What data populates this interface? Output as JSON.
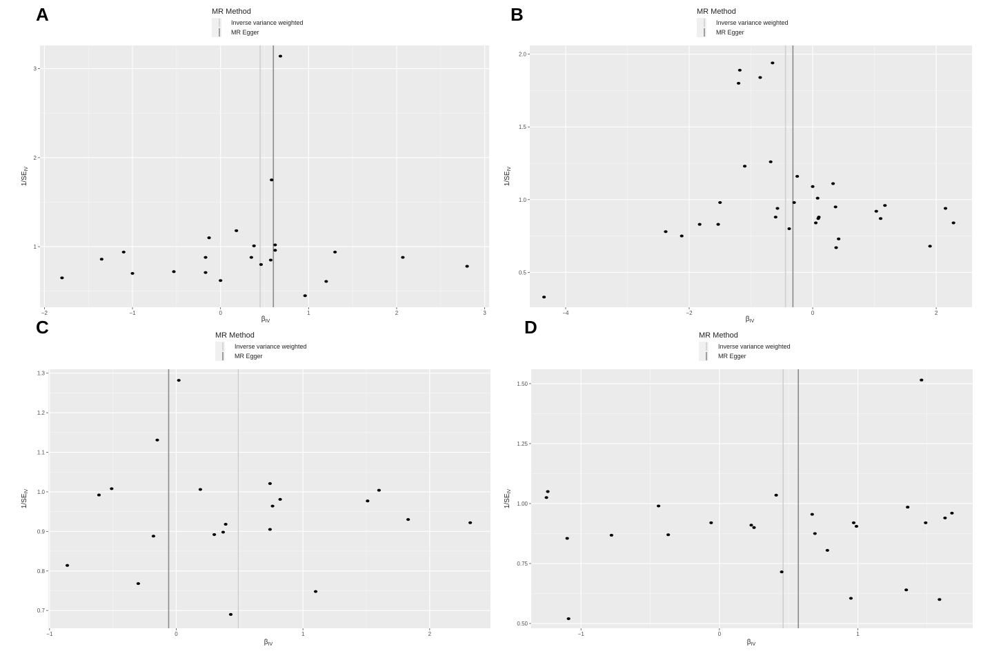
{
  "chart_data": [
    {
      "panel": "A",
      "type": "scatter",
      "legend": {
        "title": "MR Method",
        "entries": [
          "Inverse variance weighted",
          "MR Egger"
        ]
      },
      "xlabel": "β_IV",
      "ylabel": "1/SE_IV",
      "xticks": [
        -2,
        -1,
        0,
        1,
        2,
        3
      ],
      "yticks": [
        1,
        2,
        3
      ],
      "xlim": [
        -2.05,
        3.05
      ],
      "ylim": [
        0.32,
        3.26
      ],
      "lines": {
        "ivw": 0.45,
        "egger": 0.6
      },
      "points": [
        {
          "x": -1.8,
          "y": 0.65
        },
        {
          "x": -1.35,
          "y": 0.86
        },
        {
          "x": -1.1,
          "y": 0.94
        },
        {
          "x": -1.0,
          "y": 0.7
        },
        {
          "x": -0.53,
          "y": 0.72
        },
        {
          "x": -0.17,
          "y": 0.88
        },
        {
          "x": -0.17,
          "y": 0.71
        },
        {
          "x": -0.13,
          "y": 1.1
        },
        {
          "x": 0.0,
          "y": 0.62
        },
        {
          "x": 0.18,
          "y": 1.18
        },
        {
          "x": 0.35,
          "y": 0.88
        },
        {
          "x": 0.38,
          "y": 1.01
        },
        {
          "x": 0.46,
          "y": 0.8
        },
        {
          "x": 0.57,
          "y": 0.85
        },
        {
          "x": 0.58,
          "y": 1.75
        },
        {
          "x": 0.62,
          "y": 1.02
        },
        {
          "x": 0.62,
          "y": 0.96
        },
        {
          "x": 0.68,
          "y": 3.14
        },
        {
          "x": 0.96,
          "y": 0.45
        },
        {
          "x": 1.2,
          "y": 0.61
        },
        {
          "x": 1.3,
          "y": 0.94
        },
        {
          "x": 2.07,
          "y": 0.88
        },
        {
          "x": 2.8,
          "y": 0.78
        }
      ]
    },
    {
      "panel": "B",
      "type": "scatter",
      "legend": {
        "title": "MR Method",
        "entries": [
          "Inverse variance weighted",
          "MR Egger"
        ]
      },
      "xlabel": "β_IV",
      "ylabel": "1/SE_IV",
      "xticks": [
        -4,
        -2,
        0,
        2
      ],
      "yticks": [
        0.5,
        1.0,
        1.5,
        2.0
      ],
      "xlim": [
        -4.58,
        2.58
      ],
      "ylim": [
        0.26,
        2.06
      ],
      "lines": {
        "ivw": -0.44,
        "egger": -0.32
      },
      "points": [
        {
          "x": -4.35,
          "y": 0.33
        },
        {
          "x": -2.38,
          "y": 0.78
        },
        {
          "x": -2.12,
          "y": 0.75
        },
        {
          "x": -1.83,
          "y": 0.83
        },
        {
          "x": -1.53,
          "y": 0.83
        },
        {
          "x": -1.5,
          "y": 0.98
        },
        {
          "x": -1.2,
          "y": 1.8
        },
        {
          "x": -1.18,
          "y": 1.89
        },
        {
          "x": -1.1,
          "y": 1.23
        },
        {
          "x": -0.85,
          "y": 1.84
        },
        {
          "x": -0.68,
          "y": 1.26
        },
        {
          "x": -0.65,
          "y": 1.94
        },
        {
          "x": -0.6,
          "y": 0.88
        },
        {
          "x": -0.57,
          "y": 0.94
        },
        {
          "x": -0.38,
          "y": 0.8
        },
        {
          "x": -0.3,
          "y": 0.98
        },
        {
          "x": -0.25,
          "y": 1.16
        },
        {
          "x": 0.0,
          "y": 1.09
        },
        {
          "x": 0.05,
          "y": 0.84
        },
        {
          "x": 0.08,
          "y": 1.01
        },
        {
          "x": 0.09,
          "y": 0.87
        },
        {
          "x": 0.1,
          "y": 0.88
        },
        {
          "x": 0.33,
          "y": 1.11
        },
        {
          "x": 0.37,
          "y": 0.95
        },
        {
          "x": 0.38,
          "y": 0.67
        },
        {
          "x": 0.42,
          "y": 0.73
        },
        {
          "x": 1.03,
          "y": 0.92
        },
        {
          "x": 1.1,
          "y": 0.87
        },
        {
          "x": 1.17,
          "y": 0.96
        },
        {
          "x": 1.9,
          "y": 0.68
        },
        {
          "x": 2.15,
          "y": 0.94
        },
        {
          "x": 2.28,
          "y": 0.84
        }
      ]
    },
    {
      "panel": "C",
      "type": "scatter",
      "legend": {
        "title": "MR Method",
        "entries": [
          "Inverse variance weighted",
          "MR Egger"
        ]
      },
      "xlabel": "β_IV",
      "ylabel": "1/SE_IV",
      "xticks": [
        -1,
        0,
        1,
        2
      ],
      "yticks": [
        0.7,
        0.8,
        0.9,
        1.0,
        1.1,
        1.2,
        1.3
      ],
      "xlim": [
        -1.01,
        2.48
      ],
      "ylim": [
        0.655,
        1.31
      ],
      "lines": {
        "ivw": 0.49,
        "egger": -0.06
      },
      "points": [
        {
          "x": -0.86,
          "y": 0.814
        },
        {
          "x": -0.61,
          "y": 0.992
        },
        {
          "x": -0.51,
          "y": 1.008
        },
        {
          "x": -0.3,
          "y": 0.768
        },
        {
          "x": -0.18,
          "y": 0.888
        },
        {
          "x": -0.15,
          "y": 1.131
        },
        {
          "x": 0.02,
          "y": 1.282
        },
        {
          "x": 0.19,
          "y": 1.006
        },
        {
          "x": 0.3,
          "y": 0.892
        },
        {
          "x": 0.37,
          "y": 0.898
        },
        {
          "x": 0.39,
          "y": 0.918
        },
        {
          "x": 0.43,
          "y": 0.69
        },
        {
          "x": 0.74,
          "y": 1.021
        },
        {
          "x": 0.74,
          "y": 0.905
        },
        {
          "x": 0.76,
          "y": 0.964
        },
        {
          "x": 0.82,
          "y": 0.981
        },
        {
          "x": 1.1,
          "y": 0.748
        },
        {
          "x": 1.51,
          "y": 0.977
        },
        {
          "x": 1.6,
          "y": 1.004
        },
        {
          "x": 1.83,
          "y": 0.93
        },
        {
          "x": 2.32,
          "y": 0.922
        }
      ]
    },
    {
      "panel": "D",
      "type": "scatter",
      "legend": {
        "title": "MR Method",
        "entries": [
          "Inverse variance weighted",
          "MR Egger"
        ]
      },
      "xlabel": "β_IV",
      "ylabel": "1/SE_IV",
      "xticks": [
        -1,
        0,
        1
      ],
      "yticks": [
        0.5,
        0.75,
        1.0,
        1.25,
        1.5
      ],
      "xlim": [
        -1.36,
        1.83
      ],
      "ylim": [
        0.48,
        1.56
      ],
      "lines": {
        "ivw": 0.46,
        "egger": 0.57
      },
      "points": [
        {
          "x": -1.25,
          "y": 1.025
        },
        {
          "x": -1.24,
          "y": 1.05
        },
        {
          "x": -1.1,
          "y": 0.855
        },
        {
          "x": -1.09,
          "y": 0.52
        },
        {
          "x": -0.78,
          "y": 0.868
        },
        {
          "x": -0.44,
          "y": 0.99
        },
        {
          "x": -0.37,
          "y": 0.87
        },
        {
          "x": -0.06,
          "y": 0.92
        },
        {
          "x": 0.23,
          "y": 0.91
        },
        {
          "x": 0.25,
          "y": 0.9
        },
        {
          "x": 0.41,
          "y": 1.035
        },
        {
          "x": 0.45,
          "y": 0.715
        },
        {
          "x": 0.67,
          "y": 0.955
        },
        {
          "x": 0.69,
          "y": 0.875
        },
        {
          "x": 0.78,
          "y": 0.805
        },
        {
          "x": 0.95,
          "y": 0.605
        },
        {
          "x": 0.97,
          "y": 0.92
        },
        {
          "x": 0.99,
          "y": 0.905
        },
        {
          "x": 1.35,
          "y": 0.64
        },
        {
          "x": 1.36,
          "y": 0.985
        },
        {
          "x": 1.46,
          "y": 1.515
        },
        {
          "x": 1.49,
          "y": 0.92
        },
        {
          "x": 1.59,
          "y": 0.6
        },
        {
          "x": 1.63,
          "y": 0.94
        },
        {
          "x": 1.68,
          "y": 0.96
        }
      ]
    }
  ]
}
